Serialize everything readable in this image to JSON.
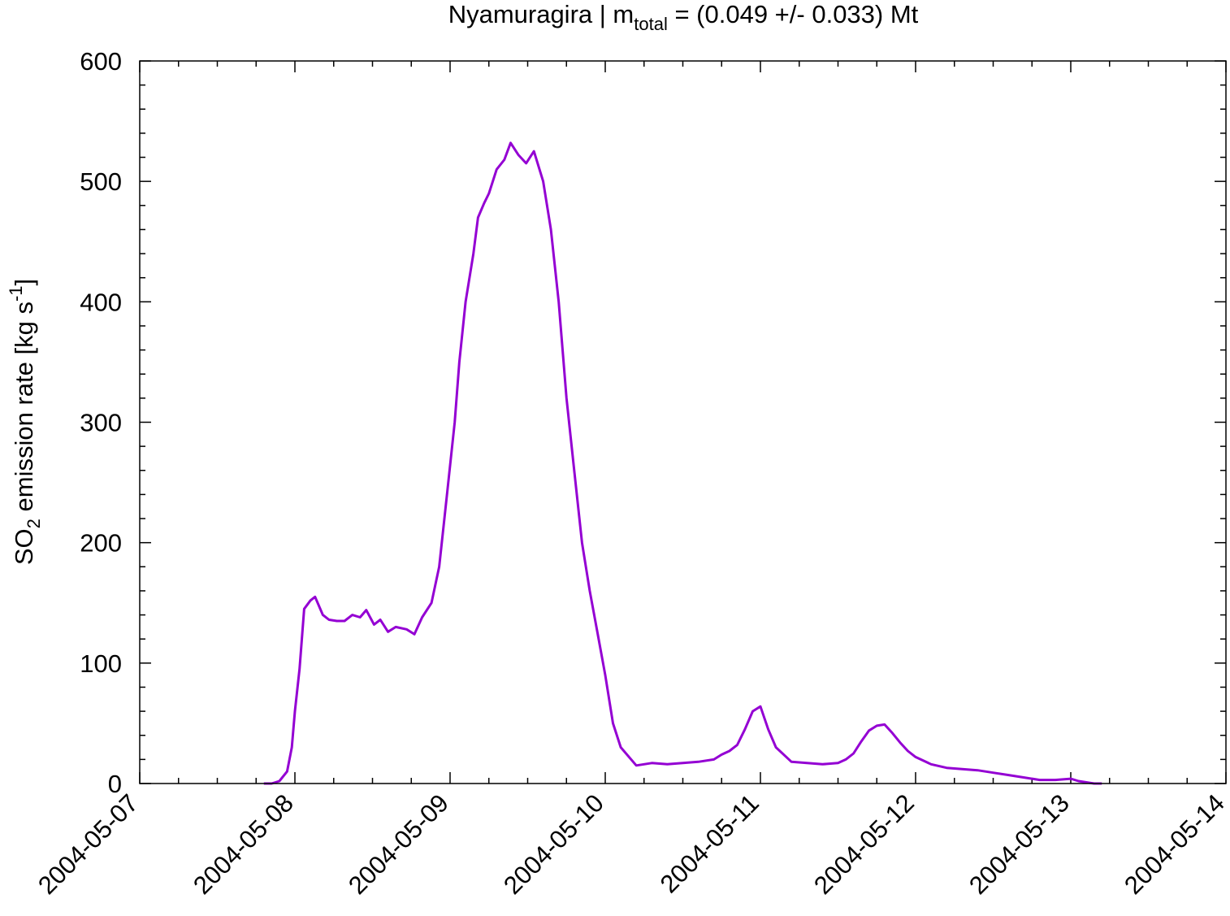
{
  "chart_data": {
    "type": "line",
    "title": {
      "main": "Nyamuragira | m",
      "sub": "total",
      "rest": " = (0.049 +/- 0.033) Mt"
    },
    "ylabel": {
      "a": "SO",
      "sub": "2",
      "b": " emission rate [kg s",
      "sup": "-1",
      "c": "]"
    },
    "xlabel": "",
    "x_ticks": [
      "2004-05-07",
      "2004-05-08",
      "2004-05-09",
      "2004-05-10",
      "2004-05-11",
      "2004-05-12",
      "2004-05-13",
      "2004-05-14"
    ],
    "y_ticks": [
      "0",
      "100",
      "200",
      "300",
      "400",
      "500",
      "600"
    ],
    "ylim": [
      0,
      600
    ],
    "xlim": [
      "2004-05-07 00:00",
      "2004-05-14 00:00"
    ],
    "grid": false,
    "legend": "none",
    "colors": {
      "line": "#9400d3",
      "axes": "#000000"
    },
    "series": [
      {
        "x": [
          "2004-05-07 19:12",
          "2004-05-07 20:24",
          "2004-05-07 21:36",
          "2004-05-07 22:48",
          "2004-05-07 23:31",
          "2004-05-08 00:00",
          "2004-05-08 00:43",
          "2004-05-08 01:26",
          "2004-05-08 02:24",
          "2004-05-08 03:07",
          "2004-05-08 04:19",
          "2004-05-08 05:17",
          "2004-05-08 06:29",
          "2004-05-08 07:41",
          "2004-05-08 08:53",
          "2004-05-08 10:05",
          "2004-05-08 11:02",
          "2004-05-08 12:14",
          "2004-05-08 13:12",
          "2004-05-08 14:24",
          "2004-05-08 15:36",
          "2004-05-08 17:17",
          "2004-05-08 18:29",
          "2004-05-08 19:41",
          "2004-05-08 21:07",
          "2004-05-08 22:19",
          "2004-05-08 23:31",
          "2004-05-09 00:43",
          "2004-05-09 01:26",
          "2004-05-09 02:24",
          "2004-05-09 03:36",
          "2004-05-09 04:19",
          "2004-05-09 05:17",
          "2004-05-09 06:00",
          "2004-05-09 07:12",
          "2004-05-09 08:24",
          "2004-05-09 09:22",
          "2004-05-09 10:34",
          "2004-05-09 11:46",
          "2004-05-09 12:58",
          "2004-05-09 14:24",
          "2004-05-09 15:36",
          "2004-05-09 16:48",
          "2004-05-09 18:00",
          "2004-05-09 19:12",
          "2004-05-09 20:24",
          "2004-05-09 21:36",
          "2004-05-09 22:48",
          "2004-05-10 00:00",
          "2004-05-10 01:12",
          "2004-05-10 02:24",
          "2004-05-10 04:48",
          "2004-05-10 07:12",
          "2004-05-10 09:36",
          "2004-05-10 12:00",
          "2004-05-10 14:24",
          "2004-05-10 16:48",
          "2004-05-10 18:00",
          "2004-05-10 19:12",
          "2004-05-10 20:24",
          "2004-05-10 21:36",
          "2004-05-10 22:48",
          "2004-05-11 00:00",
          "2004-05-11 01:12",
          "2004-05-11 02:24",
          "2004-05-11 04:48",
          "2004-05-11 07:12",
          "2004-05-11 09:36",
          "2004-05-11 12:00",
          "2004-05-11 13:12",
          "2004-05-11 14:24",
          "2004-05-11 15:36",
          "2004-05-11 16:48",
          "2004-05-11 18:00",
          "2004-05-11 19:12",
          "2004-05-11 20:24",
          "2004-05-11 21:36",
          "2004-05-11 22:48",
          "2004-05-12 00:00",
          "2004-05-12 02:24",
          "2004-05-12 04:48",
          "2004-05-12 07:12",
          "2004-05-12 09:36",
          "2004-05-12 12:00",
          "2004-05-12 14:24",
          "2004-05-12 16:48",
          "2004-05-12 19:12",
          "2004-05-12 21:36",
          "2004-05-13 00:00",
          "2004-05-13 01:12",
          "2004-05-13 02:24",
          "2004-05-13 03:36",
          "2004-05-13 04:48"
        ],
        "values": [
          0,
          0,
          2,
          10,
          30,
          60,
          95,
          145,
          152,
          155,
          140,
          136,
          135,
          135,
          140,
          138,
          144,
          132,
          136,
          126,
          130,
          128,
          124,
          138,
          150,
          180,
          240,
          300,
          350,
          400,
          440,
          470,
          482,
          490,
          510,
          518,
          532,
          522,
          515,
          525,
          500,
          460,
          400,
          320,
          260,
          200,
          160,
          125,
          90,
          50,
          30,
          15,
          17,
          16,
          17,
          18,
          20,
          24,
          27,
          32,
          45,
          60,
          64,
          45,
          30,
          18,
          17,
          16,
          17,
          20,
          25,
          35,
          44,
          48,
          49,
          42,
          34,
          27,
          22,
          16,
          13,
          12,
          11,
          9,
          7,
          5,
          3,
          3,
          4,
          2,
          1,
          0,
          0
        ]
      }
    ]
  }
}
